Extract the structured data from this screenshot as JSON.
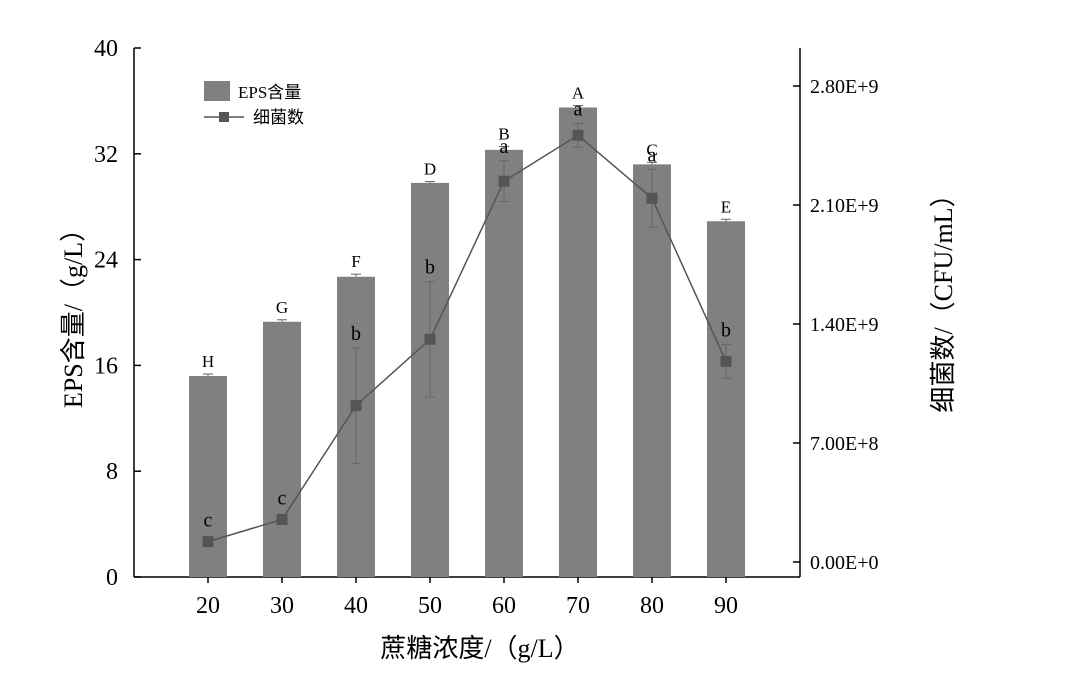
{
  "chart_data": {
    "type": "bar",
    "categories": [
      "20",
      "30",
      "40",
      "50",
      "60",
      "70",
      "80",
      "90"
    ],
    "xlabel": "蔗糖浓度/（g/L）",
    "ylabel": "EPS含量/（g/L）",
    "y2label": "细菌数/（CFU/mL）",
    "ylim": [
      0,
      40
    ],
    "yticks": [
      "0",
      "8",
      "16",
      "24",
      "32",
      "40"
    ],
    "y2lim": [
      0,
      3000000000.0
    ],
    "y2ticks": [
      {
        "value": 0,
        "label": "0.00E+0"
      },
      {
        "value": 700000000,
        "label": "7.00E+8"
      },
      {
        "value": 1400000000,
        "label": "1.40E+9"
      },
      {
        "value": 2100000000,
        "label": "2.10E+9"
      },
      {
        "value": 2800000000,
        "label": "2.80E+9"
      }
    ],
    "legend": {
      "placement": "top-left"
    },
    "series": [
      {
        "name": "EPS含量",
        "kind": "bar",
        "axis": "left",
        "color": "#808080",
        "values": [
          15.2,
          19.3,
          22.7,
          29.8,
          32.3,
          35.5,
          31.2,
          26.9
        ],
        "errors": [
          0.15,
          0.15,
          0.2,
          0.1,
          0.25,
          0.15,
          0.15,
          0.15
        ],
        "letters": [
          "H",
          "G",
          "F",
          "D",
          "B",
          "A",
          "C",
          "E"
        ]
      },
      {
        "name": "细菌数",
        "kind": "line",
        "axis": "right",
        "color": "#555555",
        "marker": "square",
        "values": [
          120000000,
          250000000,
          920000000,
          1310000000,
          2240000000,
          2510000000,
          2140000000,
          1180000000
        ],
        "errors": [
          0,
          0,
          340000000,
          340000000,
          120000000,
          70000000,
          170000000,
          100000000
        ],
        "letters": [
          "c",
          "c",
          "b",
          "b",
          "a",
          "a",
          "a",
          "b"
        ]
      }
    ]
  }
}
